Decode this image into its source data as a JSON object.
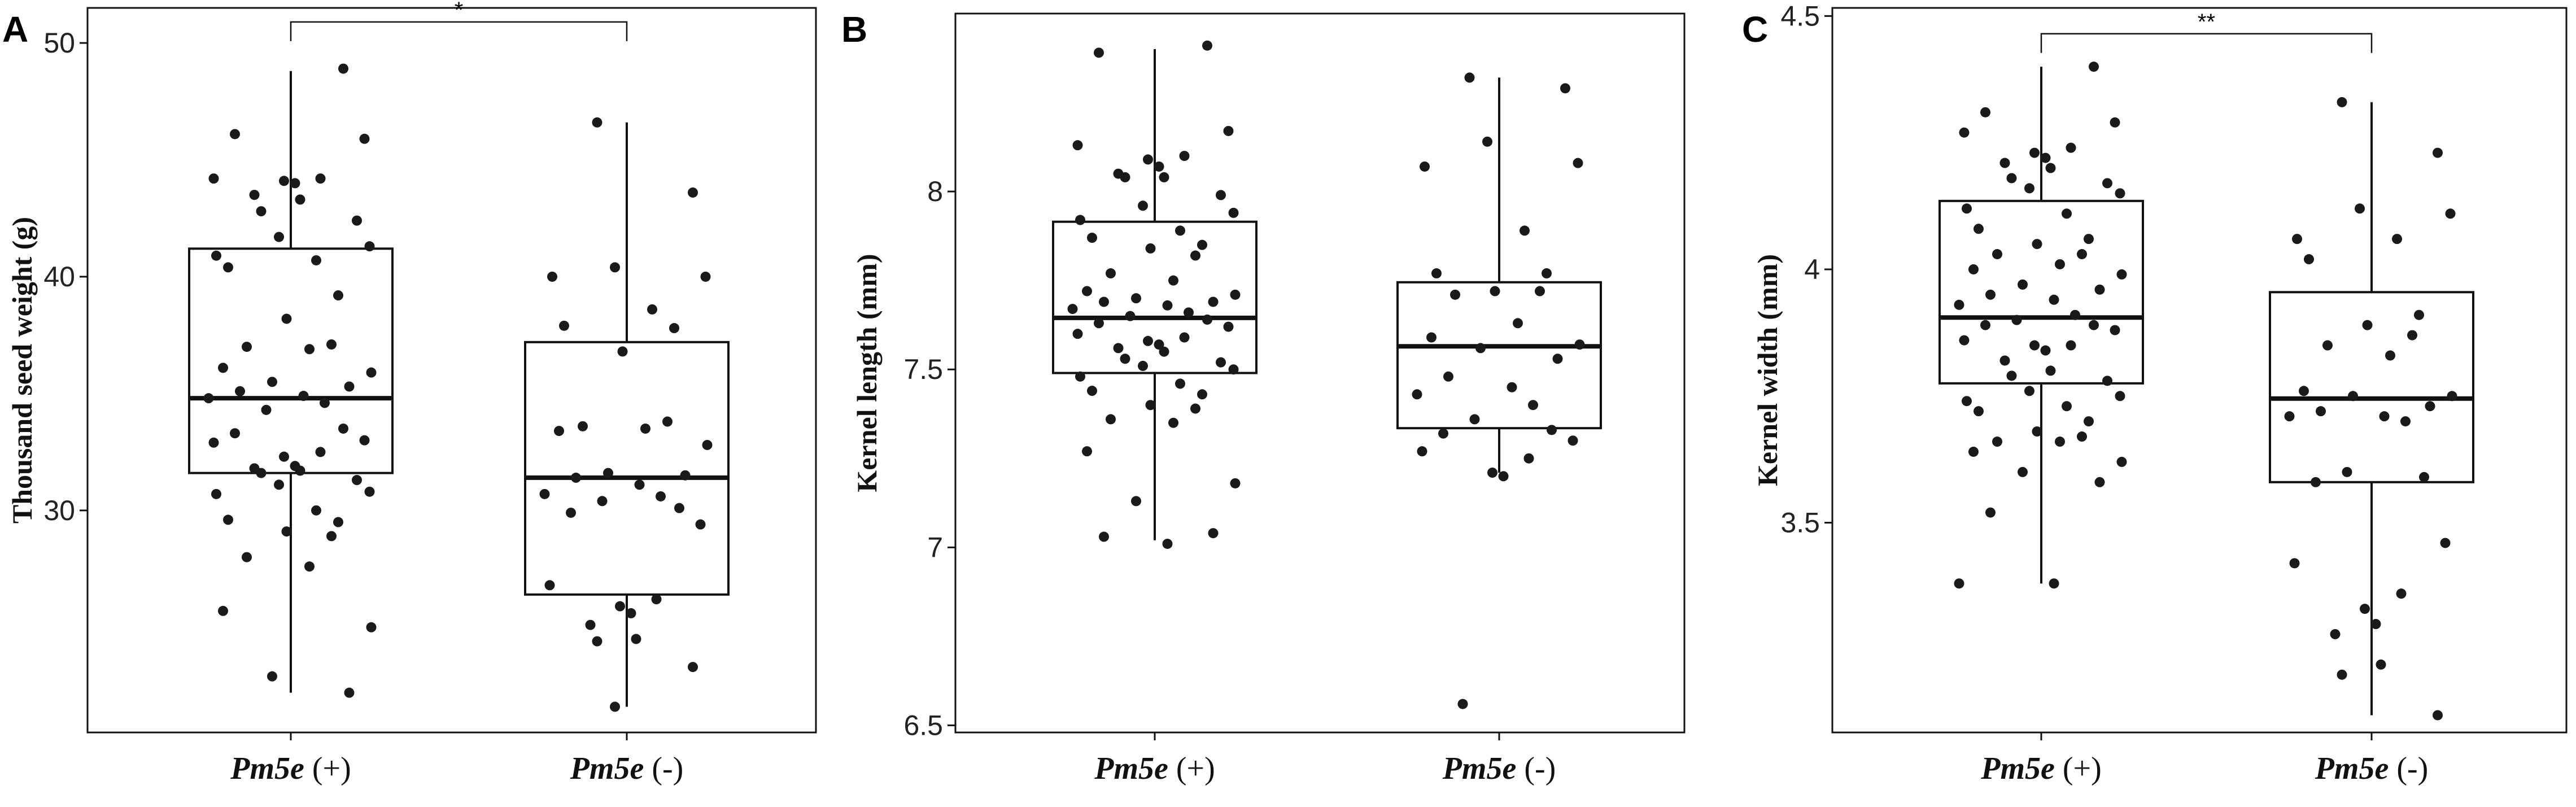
{
  "chart_data": [
    {
      "type": "box",
      "panel": "A",
      "ylabel": "Thousand seed weight (g)",
      "ylim": [
        20.5,
        51.5
      ],
      "yticks": [
        30,
        40,
        50
      ],
      "categories": [
        {
          "gene": "Pm5e",
          "suffix": " (+)"
        },
        {
          "gene": "Pm5e",
          "suffix": " (-)"
        }
      ],
      "boxes": [
        {
          "whisker_low": 22.2,
          "q1": 31.6,
          "median": 34.8,
          "q3": 41.2,
          "whisker_high": 48.8
        },
        {
          "whisker_low": 21.6,
          "q1": 26.4,
          "median": 31.4,
          "q3": 37.2,
          "whisker_high": 46.6
        }
      ],
      "points": [
        [
          48.9,
          46.1,
          45.9,
          44.2,
          44.2,
          44.1,
          44.0,
          43.5,
          43.3,
          42.8,
          42.4,
          41.7,
          41.3,
          40.9,
          40.7,
          40.4,
          39.2,
          38.2,
          37.1,
          37.0,
          36.9,
          36.1,
          35.9,
          35.5,
          35.3,
          35.1,
          34.9,
          34.8,
          34.6,
          34.3,
          33.5,
          33.3,
          33.0,
          32.9,
          32.5,
          32.3,
          31.9,
          31.8,
          31.7,
          31.6,
          31.3,
          31.1,
          30.8,
          30.7,
          30.0,
          29.6,
          29.5,
          29.1,
          28.9,
          28.0,
          27.6,
          25.7,
          25.0,
          22.9,
          22.2
        ],
        [
          46.6,
          43.6,
          40.4,
          40.0,
          40.0,
          38.6,
          37.9,
          37.8,
          36.8,
          33.8,
          33.6,
          33.5,
          33.4,
          32.8,
          31.6,
          31.5,
          31.4,
          31.1,
          30.7,
          30.6,
          30.4,
          30.1,
          29.9,
          29.4,
          26.8,
          26.2,
          25.9,
          25.6,
          25.1,
          24.5,
          24.4,
          23.3,
          21.6
        ]
      ],
      "significance": {
        "label": "*",
        "between": [
          0,
          1
        ],
        "y": 50.9
      }
    },
    {
      "type": "box",
      "panel": "B",
      "ylabel": "Kernel length (mm)",
      "ylim": [
        6.48,
        8.5
      ],
      "yticks": [
        6.5,
        7.0,
        7.5,
        8.0
      ],
      "categories": [
        {
          "gene": "Pm5e",
          "suffix": " (+)"
        },
        {
          "gene": "Pm5e",
          "suffix": " (-)"
        }
      ],
      "boxes": [
        {
          "whisker_low": 7.02,
          "q1": 7.49,
          "median": 7.645,
          "q3": 7.915,
          "whisker_high": 8.4
        },
        {
          "whisker_low": 7.21,
          "q1": 7.335,
          "median": 7.565,
          "q3": 7.745,
          "whisker_high": 8.32
        }
      ],
      "points": [
        [
          8.41,
          8.39,
          8.17,
          8.13,
          8.1,
          8.09,
          8.07,
          8.05,
          8.04,
          8.04,
          7.99,
          7.96,
          7.94,
          7.92,
          7.89,
          7.87,
          7.85,
          7.84,
          7.82,
          7.77,
          7.75,
          7.72,
          7.71,
          7.7,
          7.69,
          7.69,
          7.68,
          7.67,
          7.66,
          7.65,
          7.64,
          7.63,
          7.62,
          7.6,
          7.59,
          7.58,
          7.57,
          7.56,
          7.55,
          7.53,
          7.52,
          7.51,
          7.5,
          7.48,
          7.46,
          7.44,
          7.43,
          7.4,
          7.39,
          7.36,
          7.35,
          7.27,
          7.18,
          7.13,
          7.04,
          7.03,
          7.01
        ],
        [
          8.32,
          8.29,
          8.14,
          8.08,
          8.07,
          7.89,
          7.77,
          7.77,
          7.72,
          7.72,
          7.71,
          7.63,
          7.59,
          7.57,
          7.56,
          7.53,
          7.48,
          7.45,
          7.43,
          7.4,
          7.36,
          7.33,
          7.32,
          7.3,
          7.27,
          7.25,
          7.21,
          7.2,
          6.56
        ]
      ]
    },
    {
      "type": "box",
      "panel": "C",
      "ylabel": "Kernel width (mm)",
      "ylim": [
        3.086,
        4.516
      ],
      "yticks": [
        3.5,
        4.0,
        4.5
      ],
      "categories": [
        {
          "gene": "Pm5e",
          "suffix": " (+)"
        },
        {
          "gene": "Pm5e",
          "suffix": " (-)"
        }
      ],
      "boxes": [
        {
          "whisker_low": 3.38,
          "q1": 3.775,
          "median": 3.905,
          "q3": 4.135,
          "whisker_high": 4.4
        },
        {
          "whisker_low": 3.12,
          "q1": 3.58,
          "median": 3.745,
          "q3": 3.955,
          "whisker_high": 4.33
        }
      ],
      "points": [
        [
          4.4,
          4.31,
          4.29,
          4.27,
          4.24,
          4.23,
          4.22,
          4.21,
          4.2,
          4.18,
          4.17,
          4.16,
          4.15,
          4.12,
          4.11,
          4.08,
          4.06,
          4.05,
          4.03,
          4.03,
          4.01,
          4.0,
          3.99,
          3.97,
          3.96,
          3.95,
          3.94,
          3.93,
          3.91,
          3.9,
          3.89,
          3.89,
          3.88,
          3.86,
          3.85,
          3.85,
          3.84,
          3.82,
          3.8,
          3.79,
          3.78,
          3.76,
          3.75,
          3.74,
          3.73,
          3.72,
          3.7,
          3.68,
          3.67,
          3.66,
          3.66,
          3.64,
          3.62,
          3.6,
          3.58,
          3.52,
          3.38,
          3.38
        ],
        [
          4.33,
          4.23,
          4.12,
          4.11,
          4.06,
          4.06,
          4.02,
          3.91,
          3.89,
          3.87,
          3.85,
          3.83,
          3.76,
          3.75,
          3.75,
          3.73,
          3.72,
          3.71,
          3.71,
          3.7,
          3.6,
          3.59,
          3.58,
          3.46,
          3.42,
          3.36,
          3.33,
          3.3,
          3.28,
          3.22,
          3.2,
          3.12
        ]
      ],
      "significance": {
        "label": "**",
        "between": [
          0,
          1
        ],
        "y": 4.465
      }
    }
  ]
}
